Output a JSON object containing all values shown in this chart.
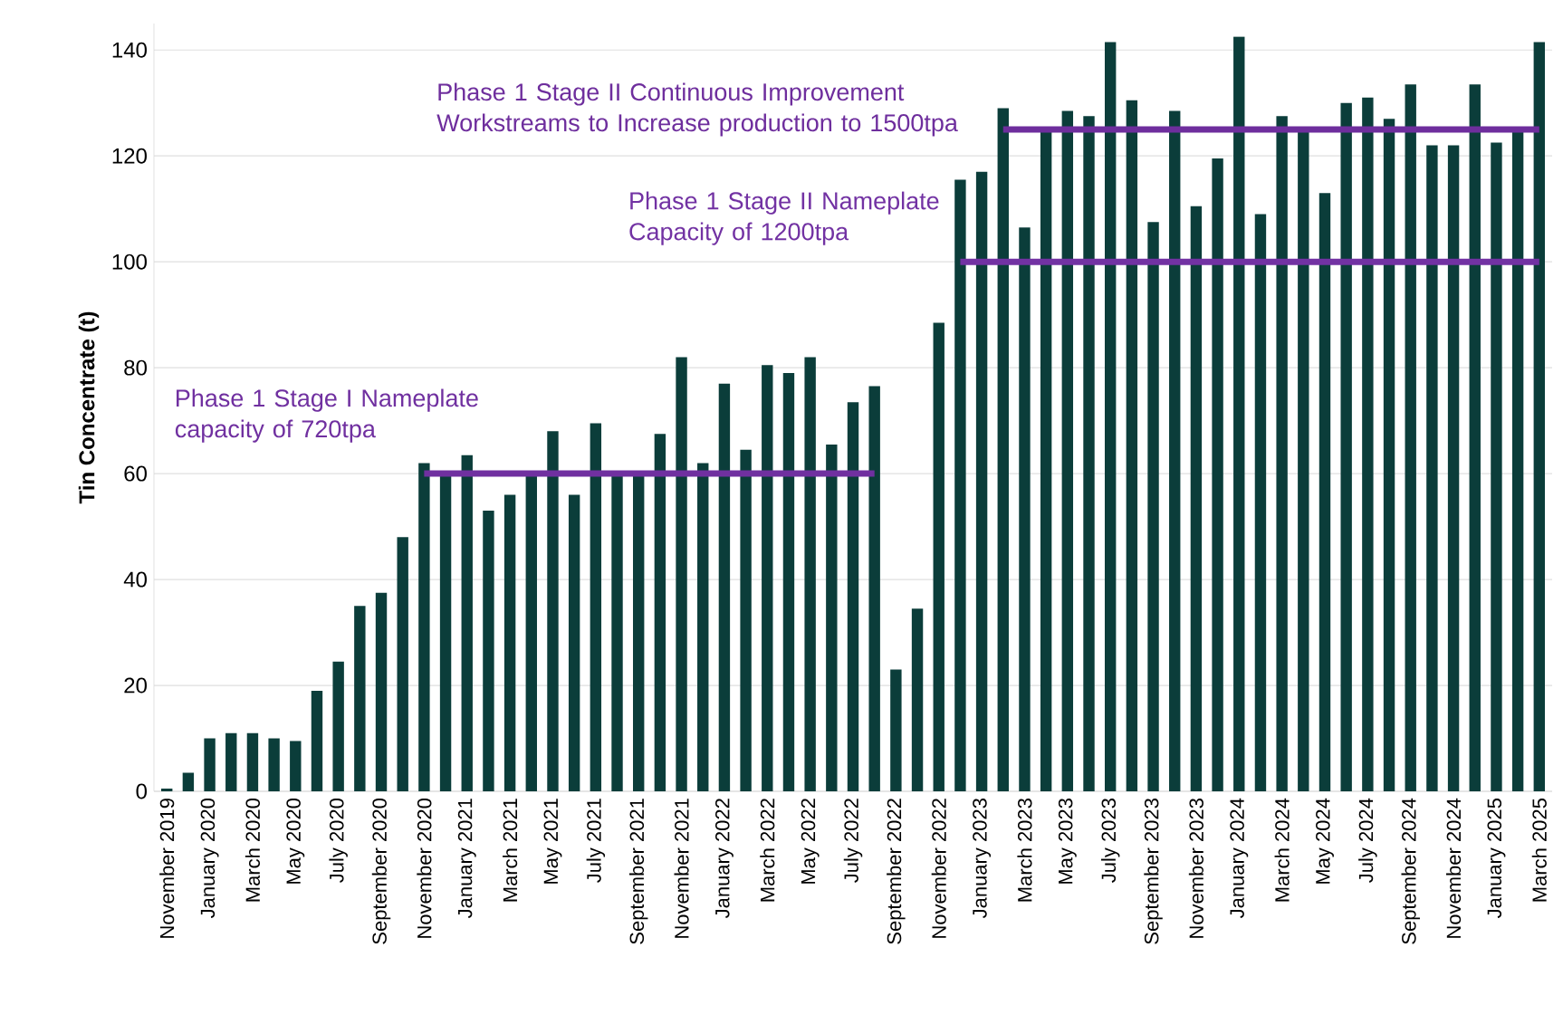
{
  "chart_data": {
    "type": "bar",
    "ylabel": "Tin Concentrate (t)",
    "categories": [
      "November 2019",
      null,
      "January 2020",
      null,
      "March 2020",
      null,
      "May 2020",
      null,
      "July 2020",
      null,
      "September 2020",
      null,
      "November 2020",
      null,
      "January 2021",
      null,
      "March 2021",
      null,
      "May 2021",
      null,
      "July 2021",
      null,
      "September 2021",
      null,
      "November 2021",
      null,
      "January 2022",
      null,
      "March 2022",
      null,
      "May 2022",
      null,
      "July 2022",
      null,
      "September 2022",
      null,
      "November 2022",
      null,
      "January 2023",
      null,
      "March 2023",
      null,
      "May 2023",
      null,
      "July 2023",
      null,
      "September 2023",
      null,
      "November 2023",
      null,
      "January 2024",
      null,
      "March 2024",
      null,
      "May 2024",
      null,
      "July 2024",
      null,
      "September 2024",
      null,
      "November 2024",
      null,
      "January 2025",
      null,
      "March 2025"
    ],
    "series": [
      {
        "color": "#0b3d3a",
        "values": [
          0.5,
          3.5,
          10,
          11,
          11,
          10,
          9.5,
          19,
          24.5,
          35,
          37.5,
          48,
          62,
          60,
          63.5,
          53,
          56,
          60,
          68,
          56,
          69.5,
          60,
          60,
          67.5,
          82,
          62,
          77,
          64.5,
          80.5,
          79,
          82,
          65.5,
          73.5,
          76.5,
          23,
          34.5,
          88.5,
          115.5,
          117,
          129,
          106.5,
          125,
          128.5,
          127.5,
          141.5,
          130.5,
          107.5,
          128.5,
          110.5,
          119.5,
          142.5,
          109,
          127.5,
          124.5,
          113,
          130,
          131,
          127,
          133.5,
          122,
          122,
          133.5,
          122.5,
          125,
          141.5
        ]
      },
      {
        "type": "line",
        "name": "Phase 1 Stage I Nameplate capacity of 720tpa",
        "color": "#7030a0",
        "values": [
          null,
          null,
          null,
          null,
          null,
          null,
          null,
          null,
          null,
          null,
          null,
          null,
          60,
          60,
          60,
          60,
          60,
          60,
          60,
          60,
          60,
          60,
          60,
          60,
          60,
          60,
          60,
          60,
          60,
          60,
          60,
          60,
          60,
          60,
          null,
          null,
          null,
          null,
          null,
          null,
          null,
          null,
          null,
          null,
          null,
          null,
          null,
          null,
          null,
          null,
          null,
          null,
          null,
          null,
          null,
          null,
          null,
          null,
          null,
          null,
          null,
          null,
          null,
          null,
          null
        ]
      },
      {
        "type": "line",
        "name": "Phase 1 Stage II Nameplate Capacity of 1200tpa",
        "color": "#7232a3",
        "values": [
          null,
          null,
          null,
          null,
          null,
          null,
          null,
          null,
          null,
          null,
          null,
          null,
          null,
          null,
          null,
          null,
          null,
          null,
          null,
          null,
          null,
          null,
          null,
          null,
          null,
          null,
          null,
          null,
          null,
          null,
          null,
          null,
          null,
          null,
          null,
          null,
          null,
          100,
          100,
          100,
          100,
          100,
          100,
          100,
          100,
          100,
          100,
          100,
          100,
          100,
          100,
          100,
          100,
          100,
          100,
          100,
          100,
          100,
          100,
          100,
          100,
          100,
          100,
          100,
          100
        ]
      },
      {
        "type": "line",
        "name": "Phase 1 Stage II Continuous Improvement Workstreams to Increase production to 1500tpa",
        "color": "#6e2e9d",
        "values": [
          null,
          null,
          null,
          null,
          null,
          null,
          null,
          null,
          null,
          null,
          null,
          null,
          null,
          null,
          null,
          null,
          null,
          null,
          null,
          null,
          null,
          null,
          null,
          null,
          null,
          null,
          null,
          null,
          null,
          null,
          null,
          null,
          null,
          null,
          null,
          null,
          null,
          null,
          null,
          125,
          125,
          125,
          125,
          125,
          125,
          125,
          125,
          125,
          125,
          125,
          125,
          125,
          125,
          125,
          125,
          125,
          125,
          125,
          125,
          125,
          125,
          125,
          125,
          125,
          125
        ]
      }
    ],
    "ylim": [
      0,
      145
    ],
    "yticks": [
      0,
      20,
      40,
      60,
      80,
      100,
      120,
      140
    ],
    "grid": "y",
    "legend": false
  }
}
